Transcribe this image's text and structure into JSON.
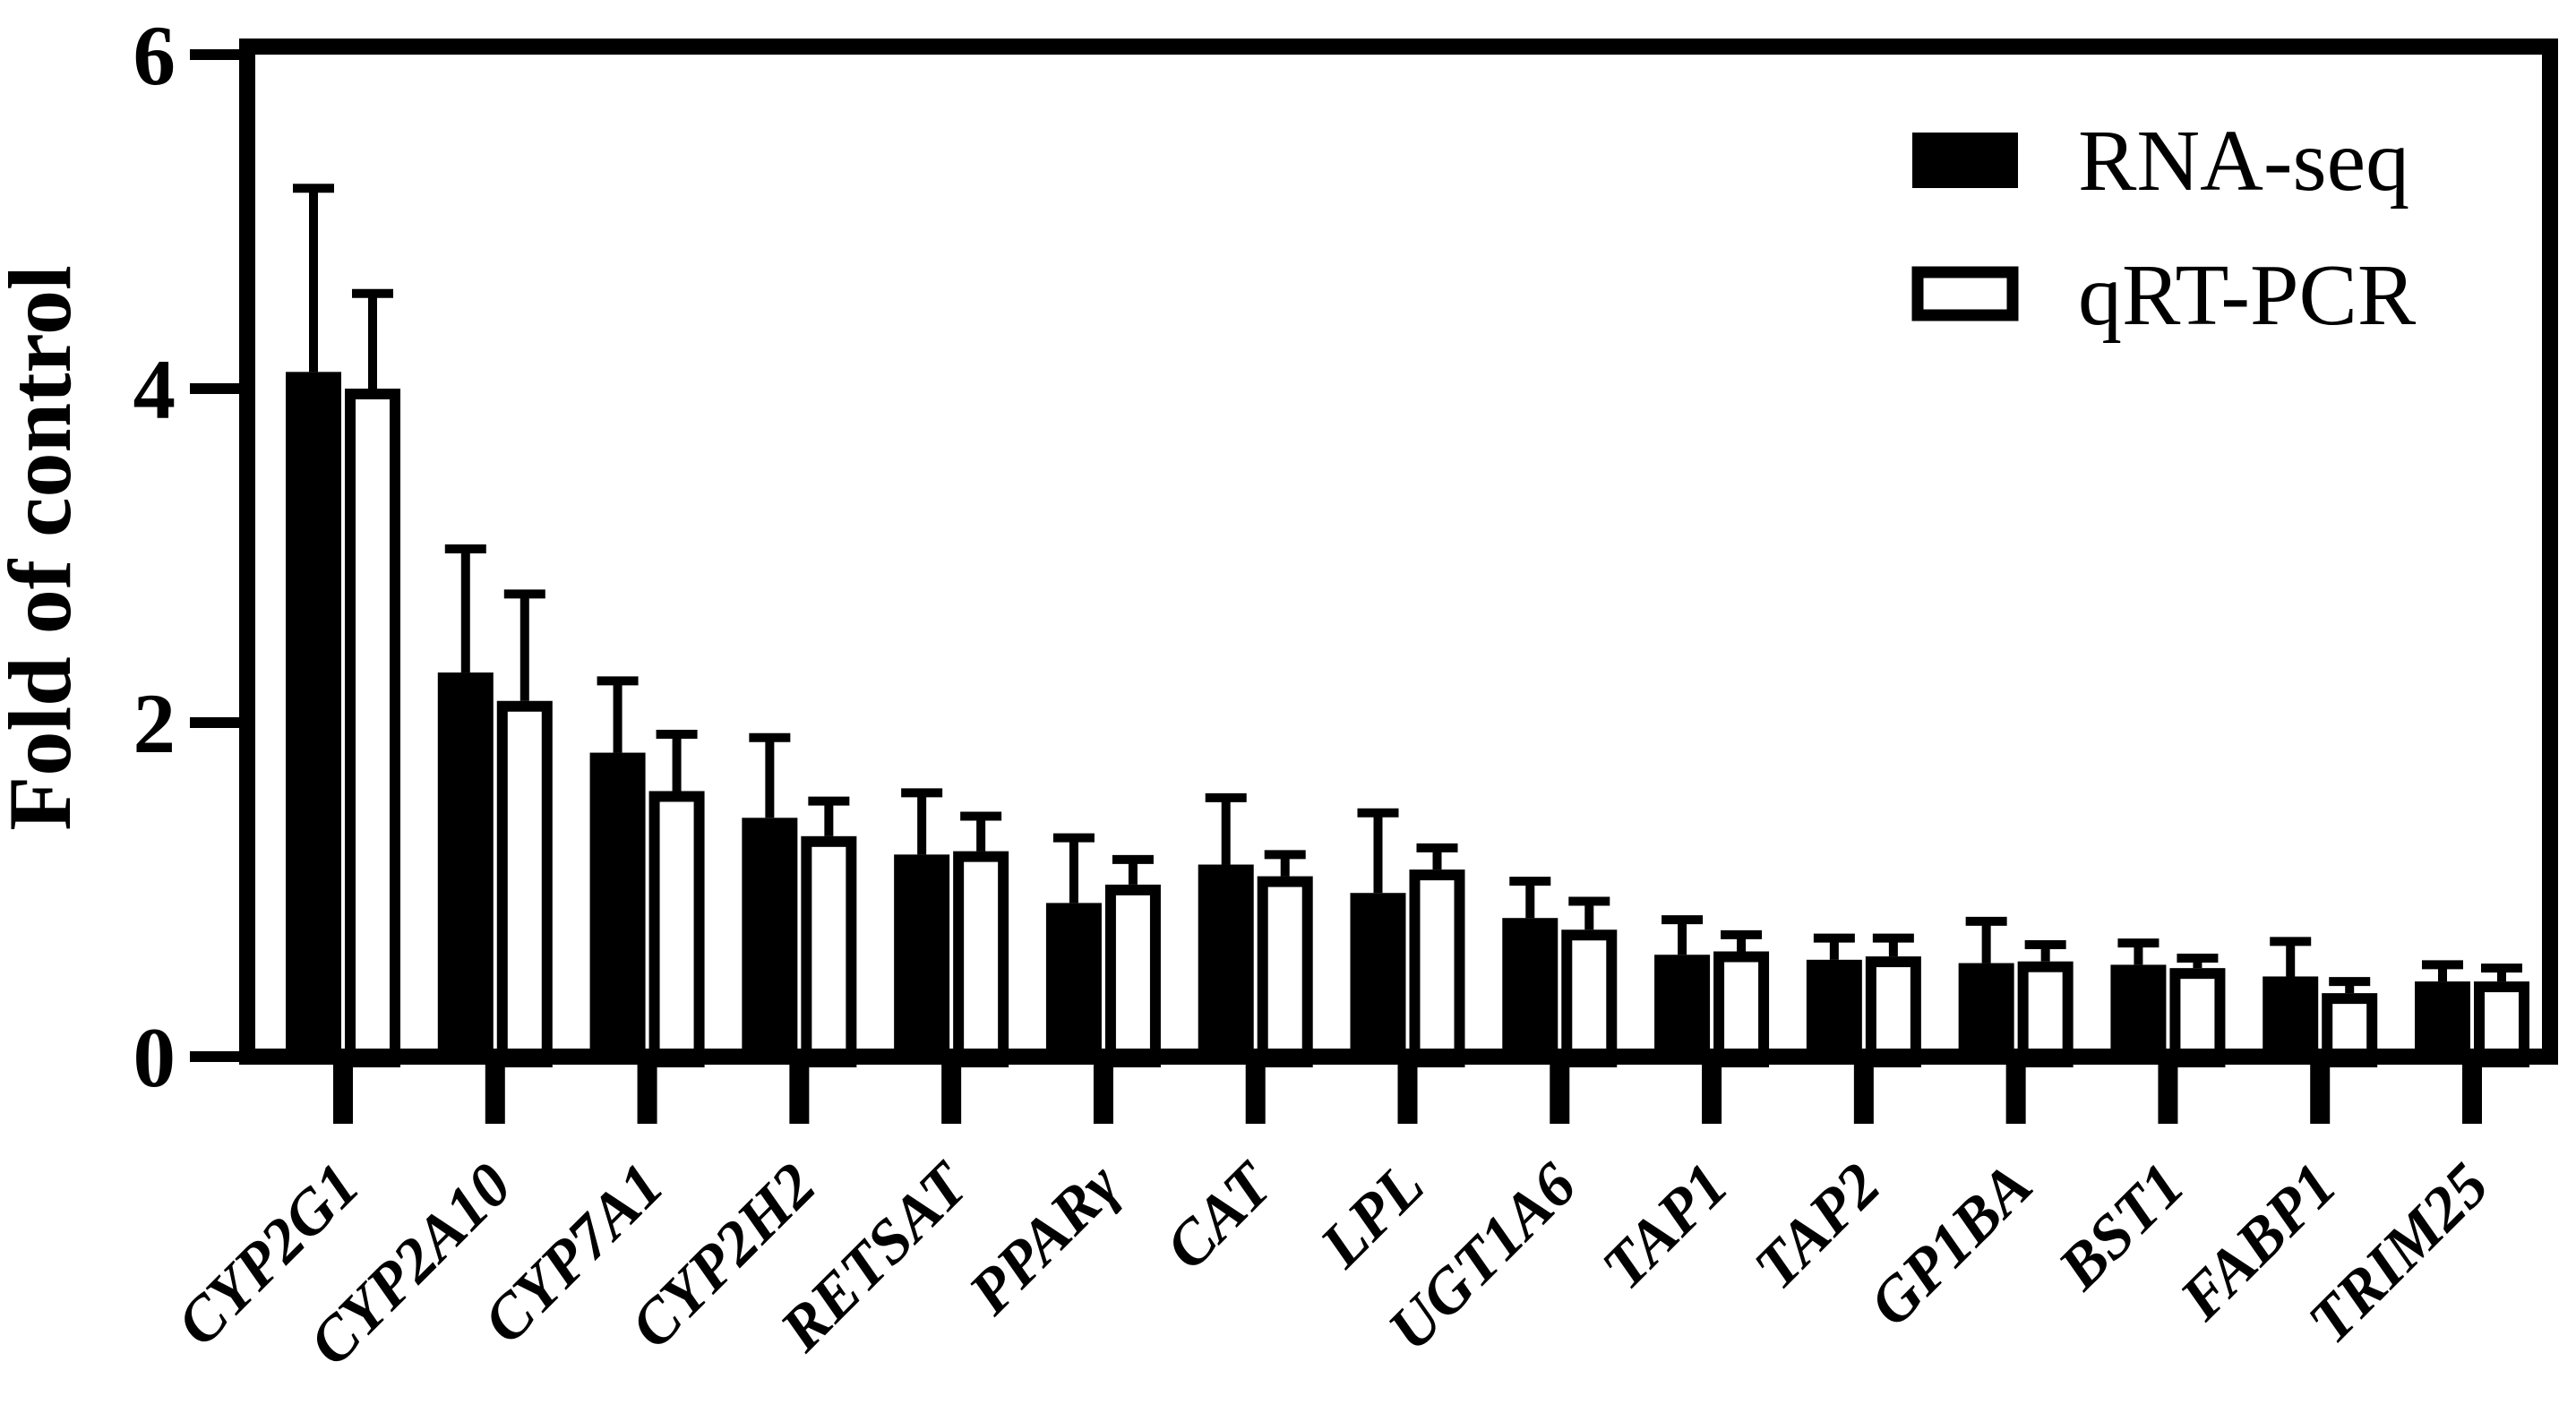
{
  "chart_data": {
    "type": "bar",
    "title": "",
    "xlabel": "",
    "ylabel": "Fold of control",
    "ylim": [
      0,
      6
    ],
    "yticks": [
      0,
      2,
      4,
      6
    ],
    "grid": false,
    "legend_position": "top-right-inside",
    "frame": "full-box",
    "bar_color_rna_seq": "#000000",
    "bar_color_qrt_pcr": "#ffffff",
    "bar_outline_color": "#000000",
    "error_bars": "upper-only",
    "categories": [
      "CYP2G1",
      "CYP2A10",
      "CYP7A1",
      "CYP2H2",
      "RETSAT",
      "PPARγ",
      "CAT",
      "LPL",
      "UGT1A6",
      "TAP1",
      "TAP2",
      "GP1BA",
      "BST1",
      "FABP1",
      "TRIM25"
    ],
    "series": [
      {
        "name": "RNA-seq",
        "fill": "#000000",
        "values": [
          4.1,
          2.3,
          1.82,
          1.43,
          1.21,
          0.92,
          1.15,
          0.98,
          0.83,
          0.61,
          0.58,
          0.56,
          0.55,
          0.48,
          0.45
        ],
        "errors": [
          1.1,
          0.74,
          0.43,
          0.48,
          0.37,
          0.39,
          0.4,
          0.48,
          0.22,
          0.21,
          0.13,
          0.25,
          0.13,
          0.21,
          0.1
        ]
      },
      {
        "name": "qRT-PCR",
        "fill": "#ffffff",
        "values": [
          4.0,
          2.13,
          1.59,
          1.32,
          1.23,
          1.03,
          1.08,
          1.12,
          0.76,
          0.63,
          0.6,
          0.57,
          0.53,
          0.38,
          0.45
        ],
        "errors": [
          0.57,
          0.64,
          0.34,
          0.21,
          0.21,
          0.15,
          0.13,
          0.13,
          0.17,
          0.1,
          0.11,
          0.1,
          0.06,
          0.07,
          0.08
        ]
      }
    ]
  }
}
